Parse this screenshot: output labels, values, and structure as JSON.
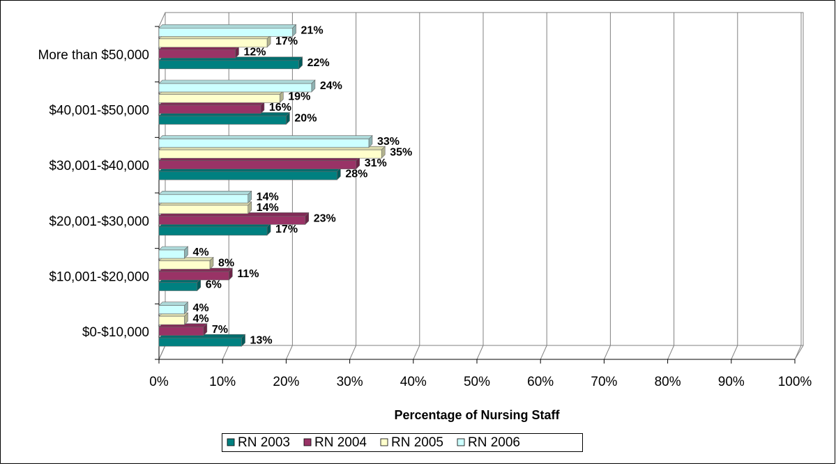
{
  "chart_data": {
    "type": "bar",
    "orientation": "horizontal",
    "x_label": "Percentage of Nursing Staff",
    "categories": [
      "$0-$10,000",
      "$10,001-$20,000",
      "$20,001-$30,000",
      "$30,001-$40,000",
      "$40,001-$50,000",
      "More than $50,000"
    ],
    "series": [
      {
        "name": "RN 2003",
        "color": "#008080",
        "values": [
          13,
          6,
          17,
          28,
          20,
          22
        ],
        "value_labels": [
          "13%",
          "6%",
          "17%",
          "28%",
          "20%",
          "22%"
        ]
      },
      {
        "name": "RN 2004",
        "color": "#993366",
        "values": [
          7,
          11,
          23,
          31,
          16,
          12
        ],
        "value_labels": [
          "7%",
          "11%",
          "23%",
          "31%",
          "16%",
          "12%"
        ]
      },
      {
        "name": "RN 2005",
        "color": "#FFFFCC",
        "values": [
          4,
          8,
          14,
          35,
          19,
          17
        ],
        "value_labels": [
          "4%",
          "8%",
          "14%",
          "35%",
          "19%",
          "17%"
        ]
      },
      {
        "name": "RN 2006",
        "color": "#CCFFFF",
        "values": [
          4,
          4,
          14,
          33,
          24,
          21
        ],
        "value_labels": [
          "4%",
          "4%",
          "14%",
          "33%",
          "24%",
          "21%"
        ]
      }
    ],
    "xlim": [
      0,
      100
    ],
    "xticks": [
      {
        "value": 0,
        "label": "0%"
      },
      {
        "value": 10,
        "label": "10%"
      },
      {
        "value": 20,
        "label": "20%"
      },
      {
        "value": 30,
        "label": "30%"
      },
      {
        "value": 40,
        "label": "40%"
      },
      {
        "value": 50,
        "label": "50%"
      },
      {
        "value": 60,
        "label": "60%"
      },
      {
        "value": 70,
        "label": "70%"
      },
      {
        "value": 80,
        "label": "80%"
      },
      {
        "value": 90,
        "label": "90%"
      },
      {
        "value": 100,
        "label": "100%"
      }
    ],
    "grid": true,
    "legend": "bottom"
  }
}
